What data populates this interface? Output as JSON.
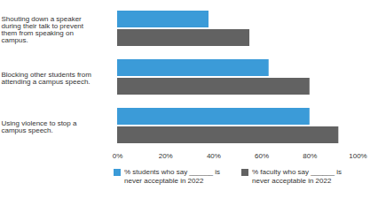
{
  "chart_data": {
    "type": "bar",
    "orientation": "horizontal",
    "categories": [
      "Shouting down a speaker during their talk to prevent them from speaking on campus.",
      "Blocking other students from attending a campus speech.",
      "Using violence to stop a campus speech."
    ],
    "series": [
      {
        "name": "% students who say ______ is never acceptable in 2022",
        "color": "#3b9bd8",
        "values": [
          38,
          63,
          80
        ]
      },
      {
        "name": "% faculty who say ______ is never acceptable in 2022",
        "color": "#626262",
        "values": [
          55,
          80,
          92
        ]
      }
    ],
    "xlim": [
      0,
      100
    ],
    "xticks": [
      {
        "value": 0,
        "label": "0%"
      },
      {
        "value": 20,
        "label": "20%"
      },
      {
        "value": 40,
        "label": "40%"
      },
      {
        "value": 60,
        "label": "60%"
      },
      {
        "value": 80,
        "label": "80%"
      },
      {
        "value": 100,
        "label": "100%"
      }
    ],
    "grid": false,
    "legend": "bottom"
  }
}
